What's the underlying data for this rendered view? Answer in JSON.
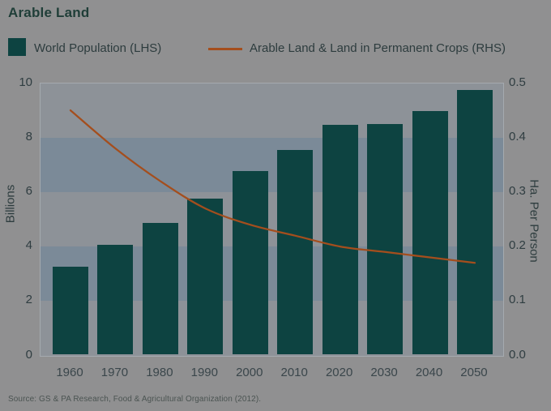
{
  "title": "Arable Land",
  "legend": {
    "bar_label": "World Population (LHS)",
    "line_label": "Arable Land & Land in Permanent Crops (RHS)"
  },
  "left_axis": {
    "label": "Billions",
    "ticks": [
      "0",
      "2",
      "4",
      "6",
      "8",
      "10"
    ]
  },
  "right_axis": {
    "label": "Ha. Per Person",
    "ticks": [
      "0.0",
      "0.1",
      "0.2",
      "0.3",
      "0.4",
      "0.5"
    ]
  },
  "source_note": "Source: GS & PA Research, Food & Agricultural Organization (2012).",
  "colors": {
    "page_background": "#909091",
    "plot_background": "#8d9298",
    "band": "#7b8a98",
    "bar": "#0d4341",
    "line": "#a44e1d",
    "title_text": "#1f3e38",
    "tick_text": "#2f3d41",
    "source_text": "#4b5452"
  },
  "chart_data": {
    "type": "bar",
    "title": "Arable Land",
    "categories": [
      "1960",
      "1970",
      "1980",
      "1990",
      "2000",
      "2010",
      "2020",
      "2030",
      "2040",
      "2050"
    ],
    "series": [
      {
        "name": "World Population (LHS)",
        "type": "bar",
        "axis": "left",
        "values": [
          3.2,
          4.0,
          4.8,
          5.7,
          6.7,
          7.5,
          8.4,
          8.45,
          8.9,
          9.7
        ]
      },
      {
        "name": "Arable Land & Land in Permanent Crops (RHS)",
        "type": "line",
        "axis": "right",
        "values": [
          0.45,
          0.38,
          0.32,
          0.27,
          0.24,
          0.22,
          0.2,
          0.19,
          0.18,
          0.17
        ]
      }
    ],
    "left_ylabel": "Billions",
    "right_ylabel": "Ha. Per Person",
    "left_ylim": [
      0,
      10
    ],
    "right_ylim": [
      0,
      0.5
    ],
    "left_tick_step": 2,
    "right_tick_step": 0.1,
    "grid": "off",
    "background_bands_left_axis": [
      [
        8,
        6
      ],
      [
        4,
        2
      ]
    ],
    "legend_position": "top"
  }
}
